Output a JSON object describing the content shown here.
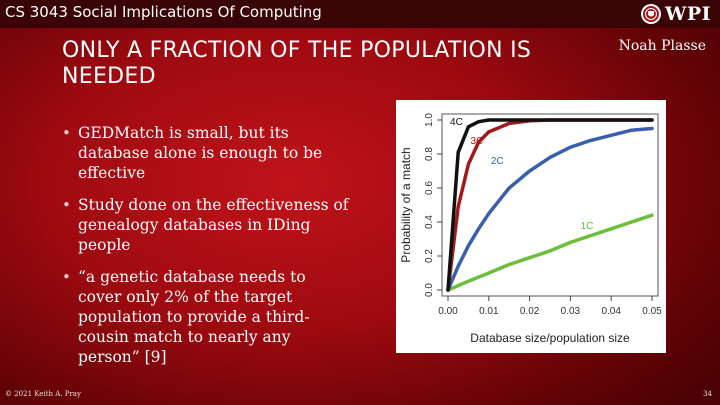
{
  "header": {
    "course_title": "CS 3043 Social Implications Of Computing",
    "logo_text": "WPI"
  },
  "slide": {
    "title": "ONLY A FRACTION OF THE POPULATION IS NEEDED",
    "author": "Noah Plasse",
    "bullets": [
      "GEDMatch is small, but its database alone is enough to be effective",
      "Study done on the effectiveness of genealogy databases in IDing people",
      "“a genetic database needs to cover only 2% of the target population to provide a third-cousin match to nearly any person” [9]"
    ]
  },
  "footer": {
    "copyright": "© 2021 Keith A. Pray",
    "page_number": "34"
  },
  "colors": {
    "c4": "#111111",
    "c3": "#a31818",
    "c2": "#3a5fb0",
    "c1": "#6bbf3a"
  },
  "chart_data": {
    "type": "line",
    "title": "",
    "xlabel": "Database size/population size",
    "ylabel": "Probability of a match",
    "xlim": [
      0,
      0.05
    ],
    "ylim": [
      0,
      1.0
    ],
    "x_ticks": [
      0.0,
      0.01,
      0.02,
      0.03,
      0.04,
      0.05
    ],
    "x_tick_labels": [
      "0.00",
      "0.01",
      "0.02",
      "0.03",
      "0.04",
      "0.05"
    ],
    "y_ticks": [
      0.0,
      0.2,
      0.4,
      0.6,
      0.8,
      1.0
    ],
    "y_tick_labels": [
      "0.0",
      "0.2",
      "0.4",
      "0.6",
      "0.8",
      "1.0"
    ],
    "x": [
      0,
      0.0025,
      0.005,
      0.0075,
      0.01,
      0.015,
      0.02,
      0.025,
      0.03,
      0.035,
      0.04,
      0.045,
      0.05
    ],
    "series": [
      {
        "name": "4C",
        "color_key": "c4",
        "values": [
          0,
          0.81,
          0.96,
          0.99,
          1.0,
          1.0,
          1.0,
          1.0,
          1.0,
          1.0,
          1.0,
          1.0,
          1.0
        ]
      },
      {
        "name": "3C",
        "color_key": "c3",
        "values": [
          0,
          0.49,
          0.74,
          0.87,
          0.93,
          0.98,
          0.995,
          1.0,
          1.0,
          1.0,
          1.0,
          1.0,
          1.0
        ]
      },
      {
        "name": "2C",
        "color_key": "c2",
        "values": [
          0,
          0.14,
          0.26,
          0.36,
          0.45,
          0.6,
          0.7,
          0.78,
          0.84,
          0.88,
          0.91,
          0.94,
          0.95
        ]
      },
      {
        "name": "1C",
        "color_key": "c1",
        "values": [
          0,
          0.026,
          0.052,
          0.076,
          0.1,
          0.15,
          0.19,
          0.23,
          0.28,
          0.32,
          0.36,
          0.4,
          0.44
        ]
      }
    ],
    "annotations": [
      {
        "text": "4C",
        "x": 0.0005,
        "y": 0.97
      },
      {
        "text": "3C",
        "x": 0.0055,
        "y": 0.86
      },
      {
        "text": "2C",
        "x": 0.0105,
        "y": 0.74
      },
      {
        "text": "1C",
        "x": 0.0325,
        "y": 0.36
      }
    ]
  }
}
